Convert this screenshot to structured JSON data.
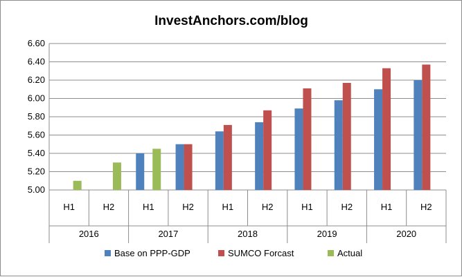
{
  "chart_data": {
    "type": "bar",
    "title": "InvestAnchors.com/blog",
    "xlabel": "",
    "ylabel": "",
    "ylim": [
      5.0,
      6.6
    ],
    "ytick_step": 0.2,
    "ytick_labels": [
      "5.00",
      "5.20",
      "5.40",
      "5.60",
      "5.80",
      "6.00",
      "6.20",
      "6.40",
      "6.60"
    ],
    "grid": true,
    "legend_position": "bottom",
    "groups": [
      "2016",
      "2017",
      "2018",
      "2019",
      "2020"
    ],
    "subcategories": [
      "H1",
      "H2"
    ],
    "categories": [
      "2016 H1",
      "2016 H2",
      "2017 H1",
      "2017 H2",
      "2018 H1",
      "2018 H2",
      "2019 H1",
      "2019 H2",
      "2020 H1",
      "2020 H2"
    ],
    "series": [
      {
        "name": "Base on PPP-GDP",
        "color": "#4f81bd",
        "values": [
          null,
          null,
          5.4,
          5.5,
          5.64,
          5.74,
          5.89,
          5.98,
          6.1,
          6.2
        ]
      },
      {
        "name": "SUMCO Forcast",
        "color": "#c0504d",
        "values": [
          null,
          null,
          null,
          5.5,
          5.71,
          5.87,
          6.11,
          6.17,
          6.33,
          6.37
        ]
      },
      {
        "name": "Actual",
        "color": "#9bbb59",
        "values": [
          5.1,
          5.3,
          5.45,
          null,
          null,
          null,
          null,
          null,
          null,
          null
        ]
      }
    ]
  }
}
